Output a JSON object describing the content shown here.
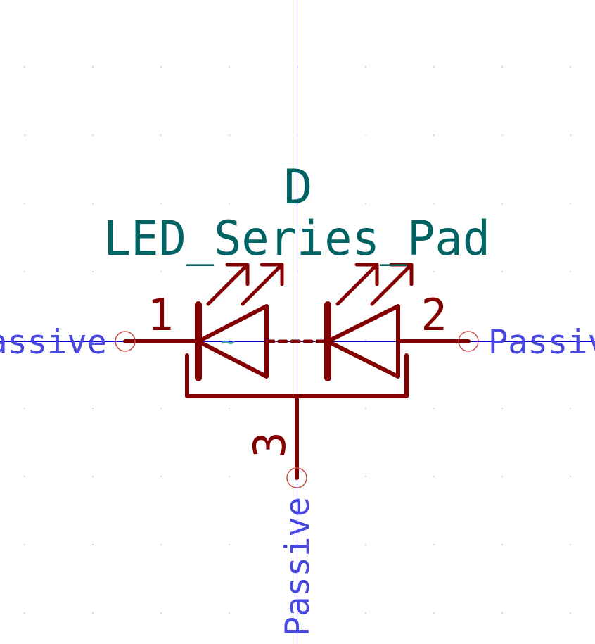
{
  "symbol": {
    "reference": "D",
    "value": "LED_Series_Pad",
    "unit_label": "~"
  },
  "pins": [
    {
      "number": "1",
      "type": "Passive"
    },
    {
      "number": "2",
      "type": "Passive"
    },
    {
      "number": "3",
      "type": "Passive"
    }
  ],
  "colors": {
    "background": "#ffffff",
    "body": "#840000",
    "field_text": "#006464",
    "pin_type": "#4848e0",
    "axis": "#0000c8",
    "grid": "#d0d0d0"
  }
}
